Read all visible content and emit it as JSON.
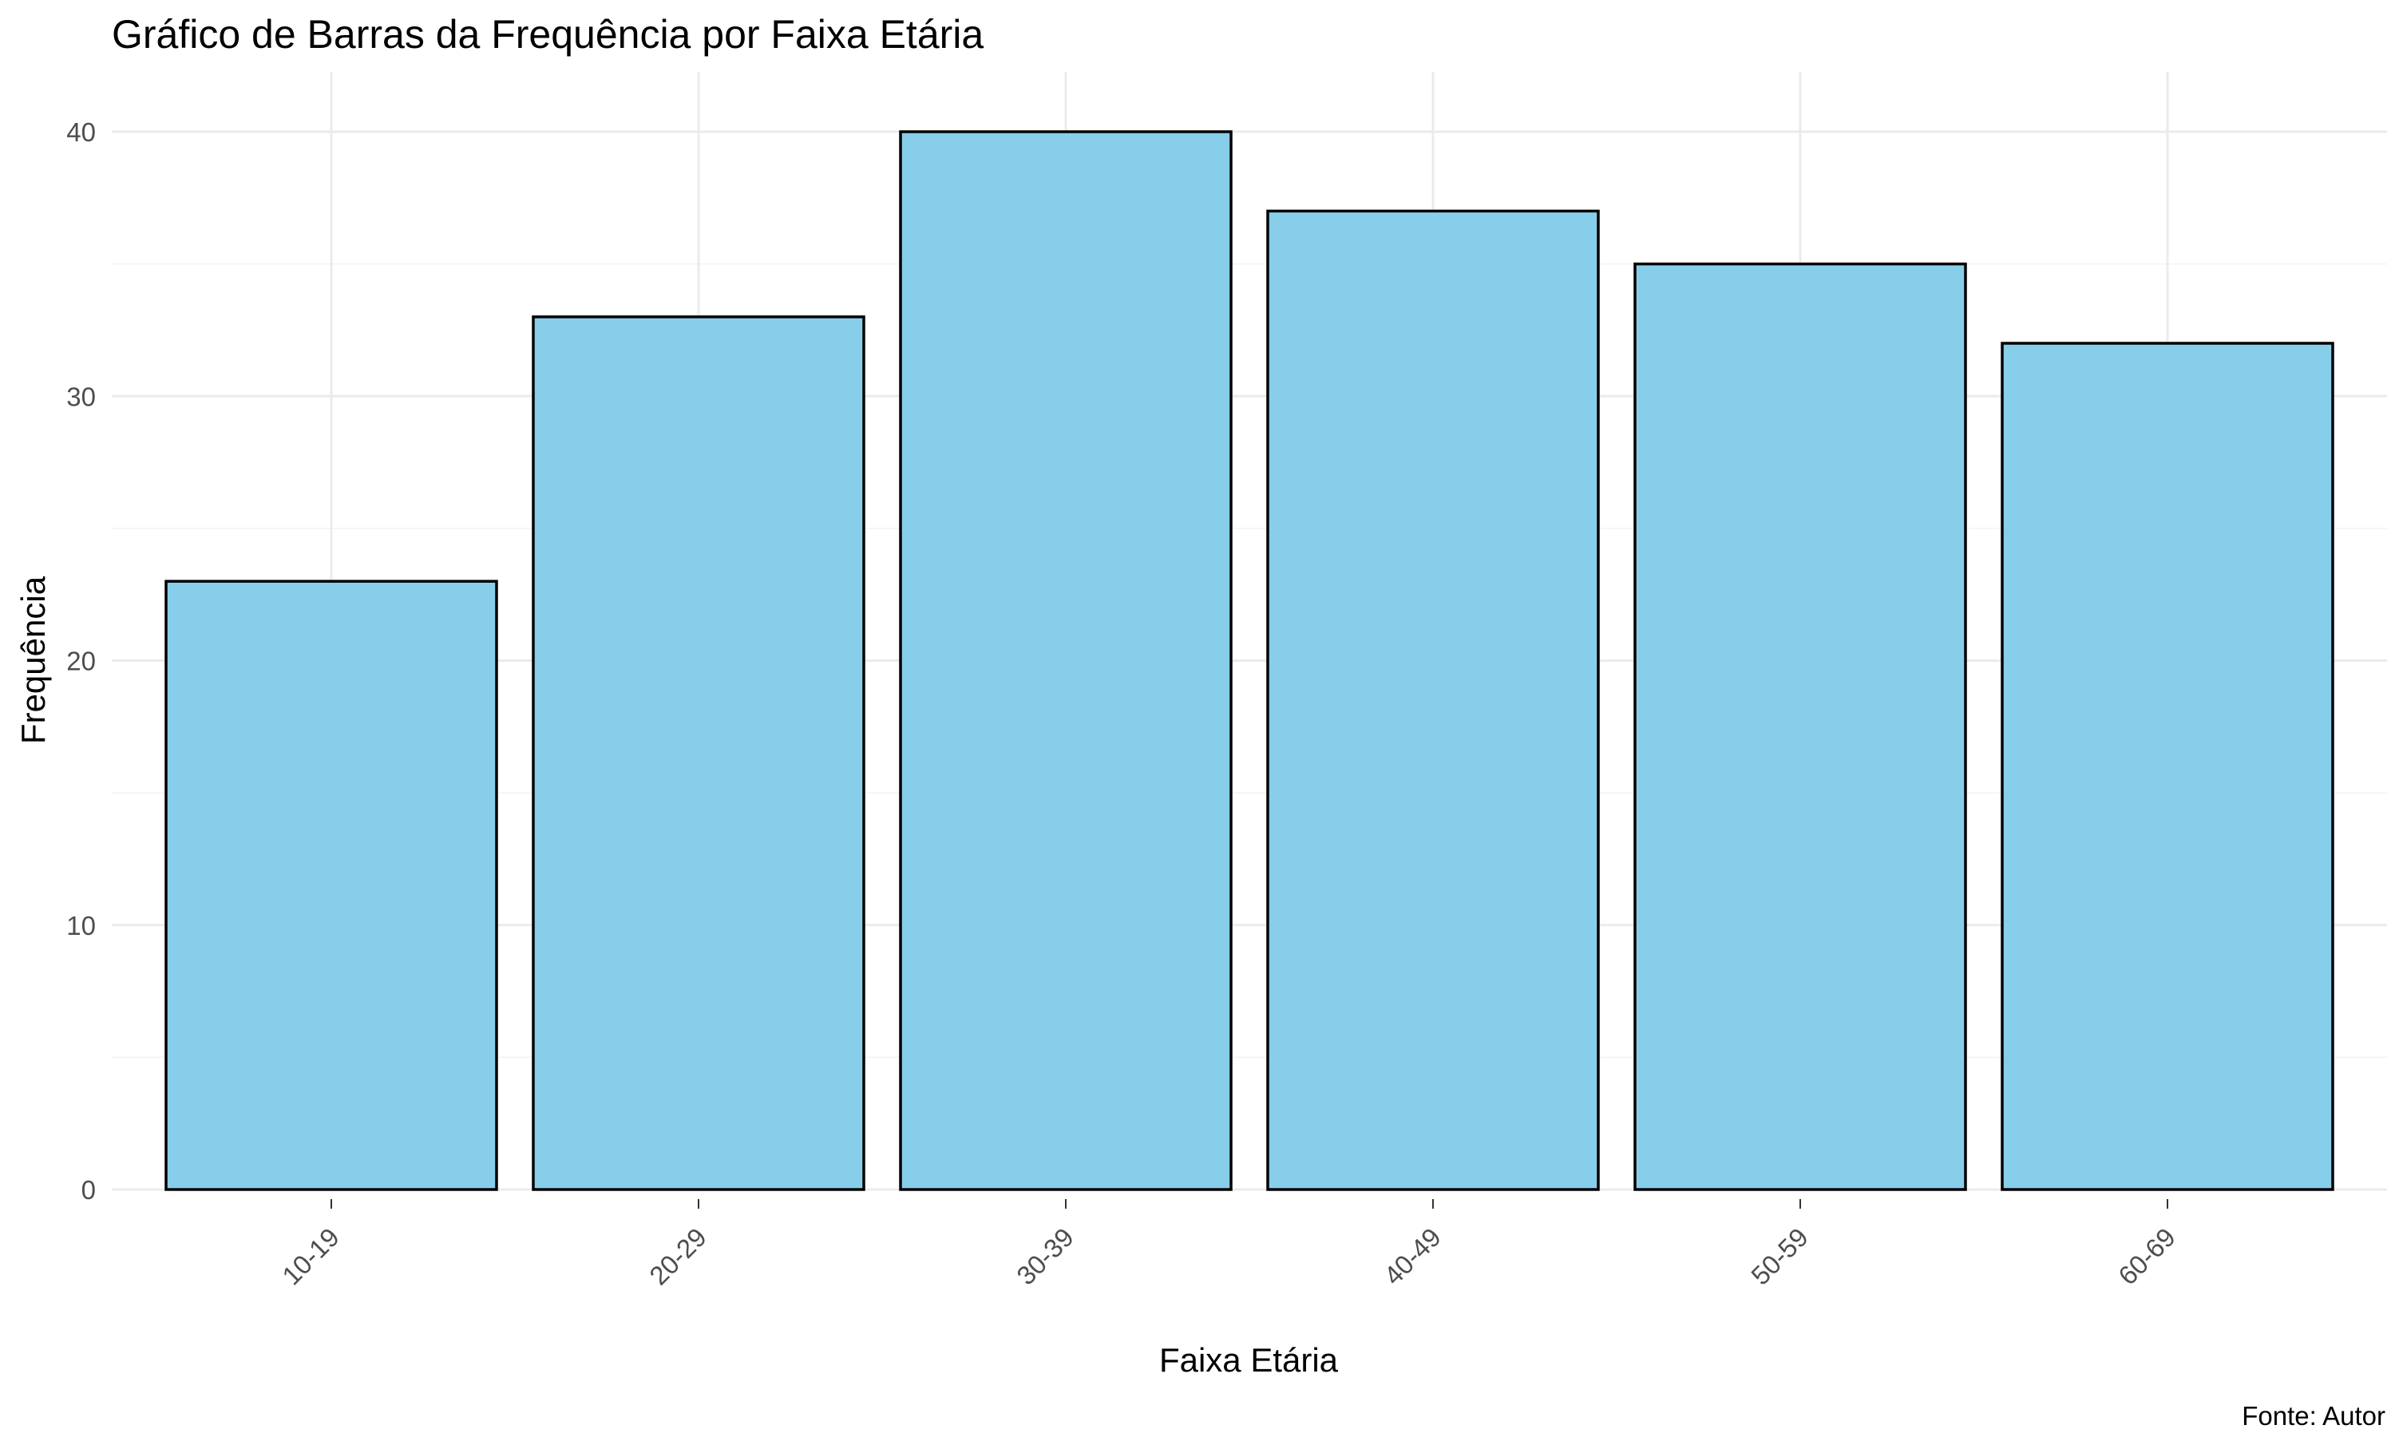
{
  "chart_data": {
    "type": "bar",
    "title": "Gráfico de Barras da Frequência por Faixa Etária",
    "xlabel": "Faixa Etária",
    "ylabel": "Frequência",
    "caption": "Fonte: Autor",
    "categories": [
      "10-19",
      "20-29",
      "30-39",
      "40-49",
      "50-59",
      "60-69"
    ],
    "values": [
      23,
      33,
      40,
      37,
      35,
      32
    ],
    "ylim": [
      0,
      40
    ],
    "yticks": [
      0,
      10,
      20,
      30,
      40
    ],
    "grid": true,
    "legend": "none",
    "bar_color": "#87CEEB",
    "bar_outline": "#000000"
  }
}
